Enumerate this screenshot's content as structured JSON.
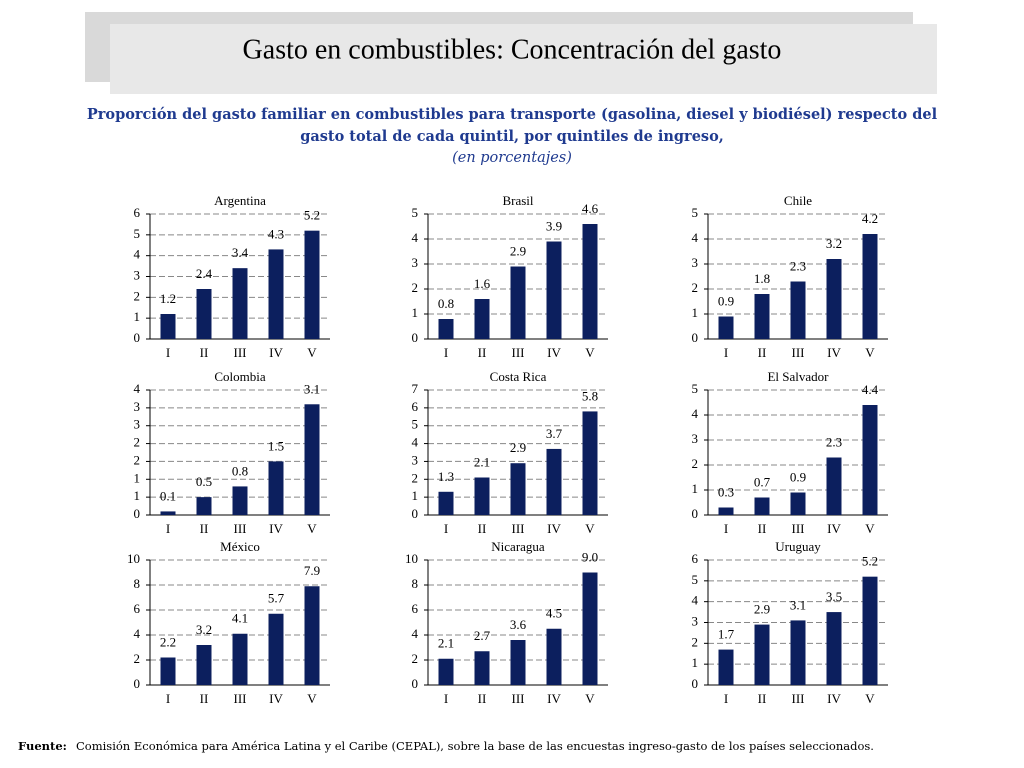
{
  "header": {
    "title": "Gasto en combustibles: Concentración del gasto",
    "subtitle_lines": [
      "Proporción del gasto familiar en combustibles para transporte (gasolina, diesel y biodiésel) respecto del",
      "gasto total de cada quintil, por quintiles de ingreso,"
    ],
    "unit_note": "(en porcentajes)"
  },
  "footer": {
    "label": "Fuente:",
    "text": "Comisión Económica para América Latina y el Caribe (CEPAL), sobre la base de las encuestas ingreso-gasto de los países seleccionados."
  },
  "chart_data": [
    {
      "type": "bar",
      "title": "Argentina",
      "categories": [
        "I",
        "II",
        "III",
        "IV",
        "V"
      ],
      "values": [
        1.2,
        2.4,
        3.4,
        4.3,
        5.2
      ],
      "color": "#0c1f5e",
      "ylim": [
        0,
        6
      ],
      "yticks": [
        0,
        1,
        2,
        3,
        4,
        5,
        6
      ],
      "grid": true
    },
    {
      "type": "bar",
      "title": "Brasil",
      "categories": [
        "I",
        "II",
        "III",
        "IV",
        "V"
      ],
      "values": [
        0.8,
        1.6,
        2.9,
        3.9,
        4.6
      ],
      "color": "#0c1f5e",
      "ylim": [
        0,
        5
      ],
      "yticks": [
        0,
        1,
        2,
        3,
        4,
        5
      ],
      "grid": true
    },
    {
      "type": "bar",
      "title": "Chile",
      "categories": [
        "I",
        "II",
        "III",
        "IV",
        "V"
      ],
      "values": [
        0.9,
        1.8,
        2.3,
        3.2,
        4.2
      ],
      "color": "#0c1f5e",
      "ylim": [
        0,
        5
      ],
      "yticks": [
        0,
        1,
        2,
        3,
        4,
        5
      ],
      "grid": true
    },
    {
      "type": "bar",
      "title": "Colombia",
      "categories": [
        "I",
        "II",
        "III",
        "IV",
        "V"
      ],
      "values": [
        0.1,
        0.5,
        0.8,
        1.5,
        3.1
      ],
      "color": "#0c1f5e",
      "ylim": [
        0,
        3.5
      ],
      "yticks": [
        0,
        {
          "value": 0.5,
          "label": "1"
        },
        1,
        {
          "value": 1.5,
          "label": "2"
        },
        2,
        {
          "value": 2.5,
          "label": "3"
        },
        3,
        {
          "value": 3.5,
          "label": "4"
        }
      ],
      "grid": true
    },
    {
      "type": "bar",
      "title": "Costa Rica",
      "categories": [
        "I",
        "II",
        "III",
        "IV",
        "V"
      ],
      "values": [
        1.3,
        2.1,
        2.9,
        3.7,
        5.8
      ],
      "color": "#0c1f5e",
      "ylim": [
        0,
        7
      ],
      "yticks": [
        0,
        1,
        2,
        3,
        4,
        5,
        6,
        7
      ],
      "grid": true
    },
    {
      "type": "bar",
      "title": "El Salvador",
      "categories": [
        "I",
        "II",
        "III",
        "IV",
        "V"
      ],
      "values": [
        0.3,
        0.7,
        0.9,
        2.3,
        4.4
      ],
      "color": "#0c1f5e",
      "ylim": [
        0,
        5
      ],
      "yticks": [
        0,
        1,
        2,
        3,
        4,
        5
      ],
      "grid": true
    },
    {
      "type": "bar",
      "title": "México",
      "categories": [
        "I",
        "II",
        "III",
        "IV",
        "V"
      ],
      "values": [
        2.2,
        3.2,
        4.1,
        5.7,
        7.9
      ],
      "color": "#0c1f5e",
      "ylim": [
        0,
        10
      ],
      "yticks": [
        0,
        2,
        4,
        6,
        8,
        10
      ],
      "grid": true
    },
    {
      "type": "bar",
      "title": "Nicaragua",
      "categories": [
        "I",
        "II",
        "III",
        "IV",
        "V"
      ],
      "values": [
        2.1,
        2.7,
        3.6,
        4.5,
        9
      ],
      "value_labels": [
        "2.1",
        "2.7",
        "3.6",
        "4.5",
        "9.0"
      ],
      "color": "#0c1f5e",
      "ylim": [
        0,
        10
      ],
      "yticks": [
        0,
        2,
        4,
        6,
        8,
        10
      ],
      "grid": true
    },
    {
      "type": "bar",
      "title": "Uruguay",
      "categories": [
        "I",
        "II",
        "III",
        "IV",
        "V"
      ],
      "values": [
        1.7,
        2.9,
        3.1,
        3.5,
        5.2
      ],
      "color": "#0c1f5e",
      "ylim": [
        0,
        6
      ],
      "yticks": [
        0,
        1,
        2,
        3,
        4,
        5,
        6
      ],
      "grid": true
    }
  ]
}
